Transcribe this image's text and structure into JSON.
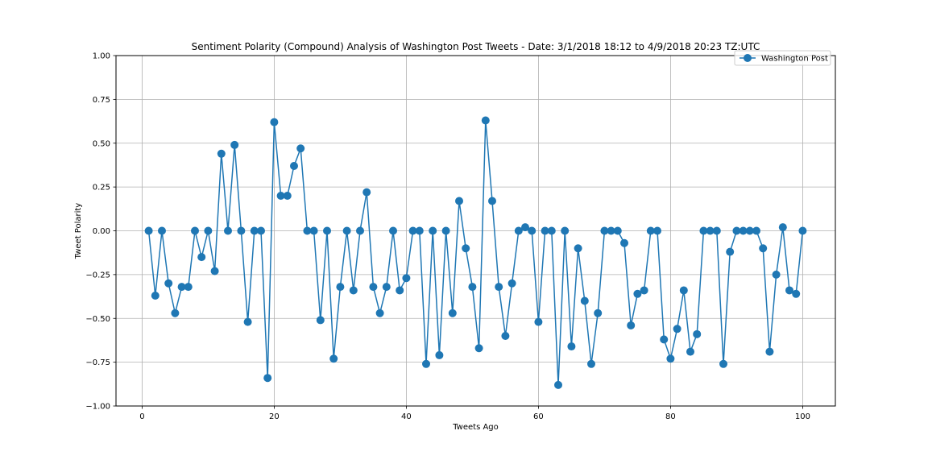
{
  "chart_data": {
    "type": "line",
    "title": "Sentiment Polarity (Compound) Analysis of Washington Post Tweets - Date: 3/1/2018 18:12 to 4/9/2018 20:23 TZ:UTC",
    "xlabel": "Tweets Ago",
    "ylabel": "Tweet Polarity",
    "xlim": [
      -3.95,
      104.95
    ],
    "ylim": [
      -1.0,
      1.0
    ],
    "xticks": [
      0,
      20,
      40,
      60,
      80,
      100
    ],
    "xtick_labels": [
      "0",
      "20",
      "40",
      "60",
      "80",
      "100"
    ],
    "yticks": [
      -1.0,
      -0.75,
      -0.5,
      -0.25,
      0.0,
      0.25,
      0.5,
      0.75,
      1.0
    ],
    "ytick_labels": [
      "−1.00",
      "−0.75",
      "−0.50",
      "−0.25",
      "0.00",
      "0.25",
      "0.50",
      "0.75",
      "1.00"
    ],
    "grid": true,
    "legend_position": "top-right",
    "color": "#1f77b4",
    "series": [
      {
        "name": "Washington Post",
        "x": [
          1,
          2,
          3,
          4,
          5,
          6,
          7,
          8,
          9,
          10,
          11,
          12,
          13,
          14,
          15,
          16,
          17,
          18,
          19,
          20,
          21,
          22,
          23,
          24,
          25,
          26,
          27,
          28,
          29,
          30,
          31,
          32,
          33,
          34,
          35,
          36,
          37,
          38,
          39,
          40,
          41,
          42,
          43,
          44,
          45,
          46,
          47,
          48,
          49,
          50,
          51,
          52,
          53,
          54,
          55,
          56,
          57,
          58,
          59,
          60,
          61,
          62,
          63,
          64,
          65,
          66,
          67,
          68,
          69,
          70,
          71,
          72,
          73,
          74,
          75,
          76,
          77,
          78,
          79,
          80,
          81,
          82,
          83,
          84,
          85,
          86,
          87,
          88,
          89,
          90,
          91,
          92,
          93,
          94,
          95,
          96,
          97,
          98,
          99,
          100
        ],
        "values": [
          0.0,
          -0.37,
          0.0,
          -0.3,
          -0.47,
          -0.32,
          -0.32,
          0.0,
          -0.15,
          0.0,
          -0.23,
          0.44,
          0.0,
          0.49,
          0.0,
          -0.52,
          0.0,
          0.0,
          -0.84,
          0.62,
          0.2,
          0.2,
          0.37,
          0.47,
          0.0,
          0.0,
          -0.51,
          0.0,
          -0.73,
          -0.32,
          0.0,
          -0.34,
          0.0,
          0.22,
          -0.32,
          -0.47,
          -0.32,
          0.0,
          -0.34,
          -0.27,
          0.0,
          0.0,
          -0.76,
          0.0,
          -0.71,
          0.0,
          -0.47,
          0.17,
          -0.1,
          -0.32,
          -0.67,
          0.63,
          0.17,
          -0.32,
          -0.6,
          -0.3,
          0.0,
          0.02,
          0.0,
          -0.52,
          0.0,
          0.0,
          -0.88,
          0.0,
          -0.66,
          -0.1,
          -0.4,
          -0.76,
          -0.47,
          0.0,
          0.0,
          0.0,
          -0.07,
          -0.54,
          -0.36,
          -0.34,
          0.0,
          0.0,
          -0.62,
          -0.73,
          -0.56,
          -0.34,
          -0.69,
          -0.59,
          0.0,
          0.0,
          0.0,
          -0.76,
          -0.12,
          0.0,
          0.0,
          0.0,
          0.0,
          -0.1,
          -0.69,
          -0.25,
          0.02,
          -0.34,
          -0.36,
          0.0
        ]
      }
    ]
  }
}
